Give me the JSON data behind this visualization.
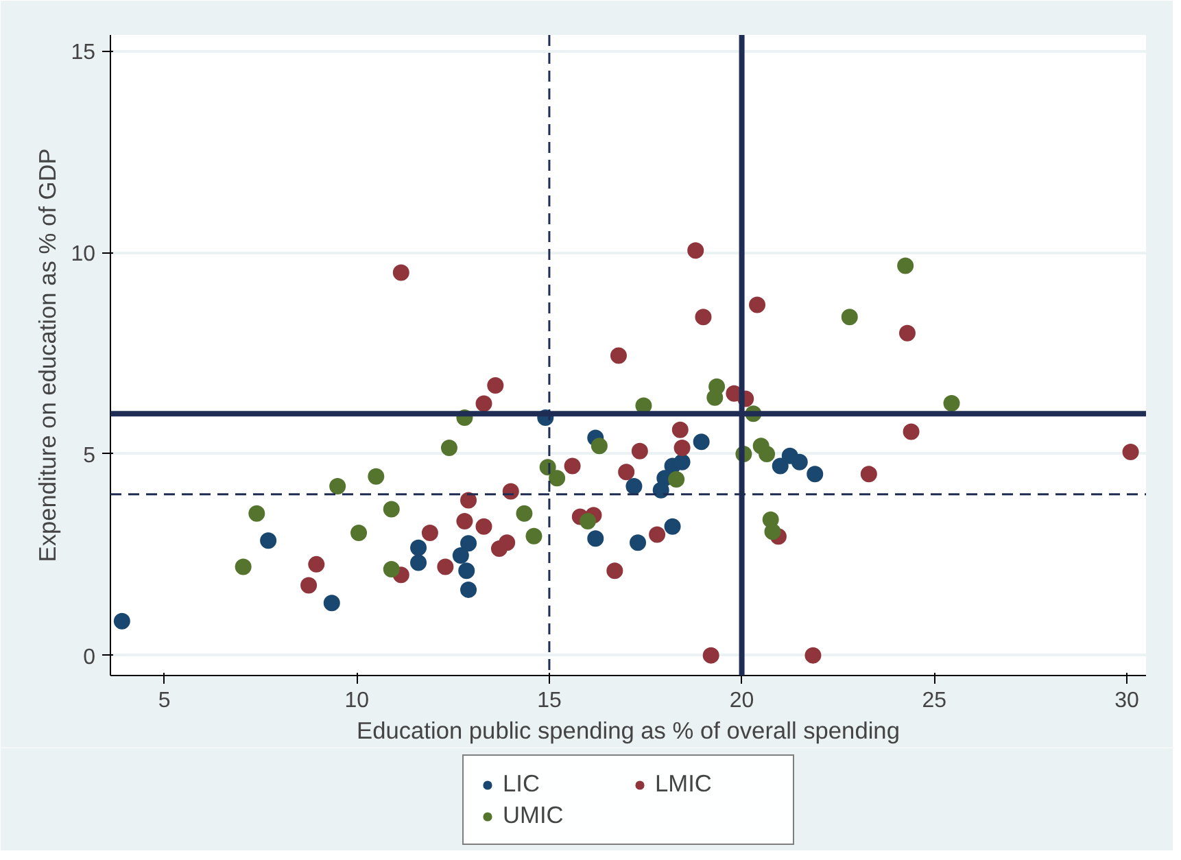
{
  "chart_data": {
    "type": "scatter",
    "xlabel": "Education public spending as % of overall spending",
    "ylabel": "Expenditure on education as % of GDP",
    "xlim": [
      3.6,
      30.5
    ],
    "ylim": [
      -0.5,
      15.4
    ],
    "xticks": [
      5,
      10,
      15,
      20,
      25,
      30
    ],
    "yticks": [
      0,
      5,
      10,
      15
    ],
    "grid": "y",
    "legend": "bottom",
    "marker": "circle",
    "ref_lines": [
      {
        "axis": "x",
        "value": 15,
        "label": null,
        "color": "#1f2d54",
        "line_style": "dashed"
      },
      {
        "axis": "x",
        "value": 20,
        "label": null,
        "color": "#1f2d54",
        "line_style": "solid"
      },
      {
        "axis": "y",
        "value": 4,
        "label": null,
        "color": "#1f2d54",
        "line_style": "dashed"
      },
      {
        "axis": "y",
        "value": 6,
        "label": null,
        "color": "#1f2d54",
        "line_style": "solid"
      }
    ],
    "series": [
      {
        "name": "LIC",
        "color": "#1a476f",
        "x": [
          3.9,
          7.7,
          9.35,
          11.6,
          11.6,
          12.9,
          12.7,
          12.85,
          12.9,
          14.9,
          16.2,
          17.2,
          16.2,
          17.3,
          18.2,
          17.9,
          18.0,
          18.2,
          18.45,
          18.95,
          21.0,
          21.25,
          21.5,
          21.9
        ],
        "values": [
          0.85,
          2.85,
          1.3,
          2.67,
          2.3,
          2.78,
          2.48,
          2.1,
          1.63,
          5.9,
          5.4,
          4.2,
          2.9,
          2.8,
          3.2,
          4.1,
          4.4,
          4.7,
          4.8,
          5.3,
          4.7,
          4.95,
          4.8,
          4.5
        ]
      },
      {
        "name": "LMIC",
        "color": "#90353b",
        "x": [
          11.15,
          13.6,
          13.3,
          12.9,
          12.8,
          13.3,
          11.9,
          12.3,
          11.15,
          8.95,
          8.75,
          13.7,
          13.9,
          14.0,
          18.8,
          19.0,
          20.4,
          16.8,
          19.8,
          20.1,
          18.4,
          18.45,
          17.35,
          15.6,
          17.0,
          15.8,
          16.15,
          17.8,
          16.7,
          20.95,
          19.2,
          21.85,
          24.3,
          24.4,
          23.3,
          30.1
        ],
        "values": [
          9.5,
          6.7,
          6.25,
          3.85,
          3.33,
          3.2,
          3.04,
          2.2,
          2.0,
          2.26,
          1.74,
          2.65,
          2.8,
          4.07,
          10.05,
          8.4,
          8.7,
          7.44,
          6.5,
          6.37,
          5.6,
          5.15,
          5.07,
          4.7,
          4.55,
          3.44,
          3.48,
          3.0,
          2.1,
          2.95,
          0,
          0,
          8.0,
          5.55,
          4.5,
          5.05
        ]
      },
      {
        "name": "UMIC",
        "color": "#55752f",
        "x": [
          12.8,
          12.4,
          10.5,
          9.5,
          10.9,
          10.05,
          7.4,
          7.05,
          10.9,
          17.45,
          19.35,
          19.3,
          20.3,
          16.3,
          14.96,
          15.2,
          18.3,
          14.35,
          14.6,
          16.0,
          20.05,
          20.5,
          20.65,
          20.75,
          20.8,
          24.25,
          22.8,
          25.45
        ],
        "values": [
          5.9,
          5.15,
          4.44,
          4.2,
          3.63,
          3.04,
          3.52,
          2.2,
          2.14,
          6.2,
          6.67,
          6.4,
          6.0,
          5.2,
          4.67,
          4.4,
          4.37,
          3.52,
          2.96,
          3.33,
          5.0,
          5.2,
          5.0,
          3.37,
          3.07,
          9.67,
          8.4,
          6.26
        ]
      }
    ]
  }
}
